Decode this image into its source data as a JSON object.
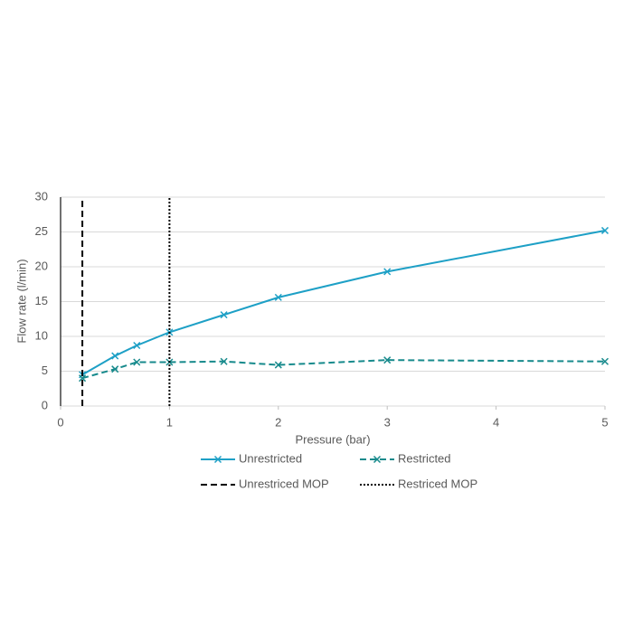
{
  "chart_data": {
    "type": "line",
    "x_label": "Pressure (bar)",
    "y_label": "Flow rate (l/min)",
    "xlim": [
      0,
      5
    ],
    "xticks": [
      0,
      1,
      2,
      3,
      4,
      5
    ],
    "ylim": [
      0,
      30
    ],
    "yticks": [
      0,
      5,
      10,
      15,
      20,
      25,
      30
    ],
    "grid": true,
    "series": [
      {
        "name": "Unrestricted",
        "color": "#1ea0c6",
        "style": "solid",
        "marker": true,
        "x": [
          0.2,
          0.5,
          0.7,
          1.0,
          1.5,
          2,
          3,
          5
        ],
        "values": [
          4.5,
          7.2,
          8.7,
          10.6,
          13.1,
          15.6,
          19.3,
          25.2
        ]
      },
      {
        "name": "Restricted",
        "color": "#178a8c",
        "style": "dashed",
        "marker": true,
        "x": [
          0.2,
          0.5,
          0.7,
          1.0,
          1.5,
          2,
          3,
          5
        ],
        "values": [
          4.0,
          5.3,
          6.3,
          6.3,
          6.4,
          5.9,
          6.6,
          6.4
        ]
      },
      {
        "name": "Unrestriced MOP",
        "color": "#000000",
        "style": "dashed",
        "marker": false,
        "x": [
          0.2,
          0.2
        ],
        "values": [
          0,
          30
        ]
      },
      {
        "name": "Restriced MOP",
        "color": "#000000",
        "style": "dotted",
        "marker": false,
        "x": [
          1,
          1
        ],
        "values": [
          0,
          30
        ]
      }
    ]
  }
}
